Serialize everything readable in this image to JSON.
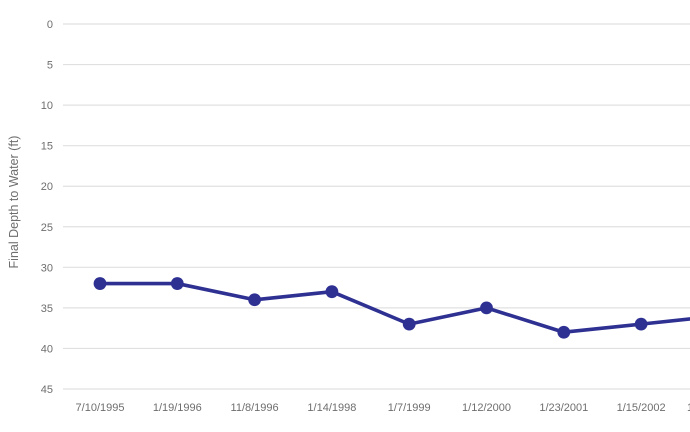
{
  "chart_data": {
    "type": "line",
    "title": "",
    "xlabel": "",
    "ylabel": "Final Depth to Water (ft)",
    "categories": [
      "7/10/1995",
      "1/19/1996",
      "11/8/1996",
      "1/14/1998",
      "1/7/1999",
      "1/12/2000",
      "1/23/2001",
      "1/15/2002"
    ],
    "values": [
      32,
      32,
      34,
      33,
      37,
      35,
      38,
      37
    ],
    "y_ticks": [
      0,
      5,
      10,
      15,
      20,
      25,
      30,
      35,
      40,
      45
    ],
    "ylim": [
      0,
      45
    ],
    "y_axis_reversed": true,
    "grid": true,
    "legend_position": "none",
    "marker": "circle",
    "colors": {
      "line": "#2e3192",
      "marker": "#2e3192",
      "gridline": "#e0e0e0",
      "tick_label": "#6e6e6e",
      "axis_title": "#6e6e6e",
      "background": "#ffffff"
    },
    "right_edge_clip": {
      "line_continues_past_edge": true,
      "offscreen_next_value": 36,
      "partial_tick_label": "1"
    }
  }
}
